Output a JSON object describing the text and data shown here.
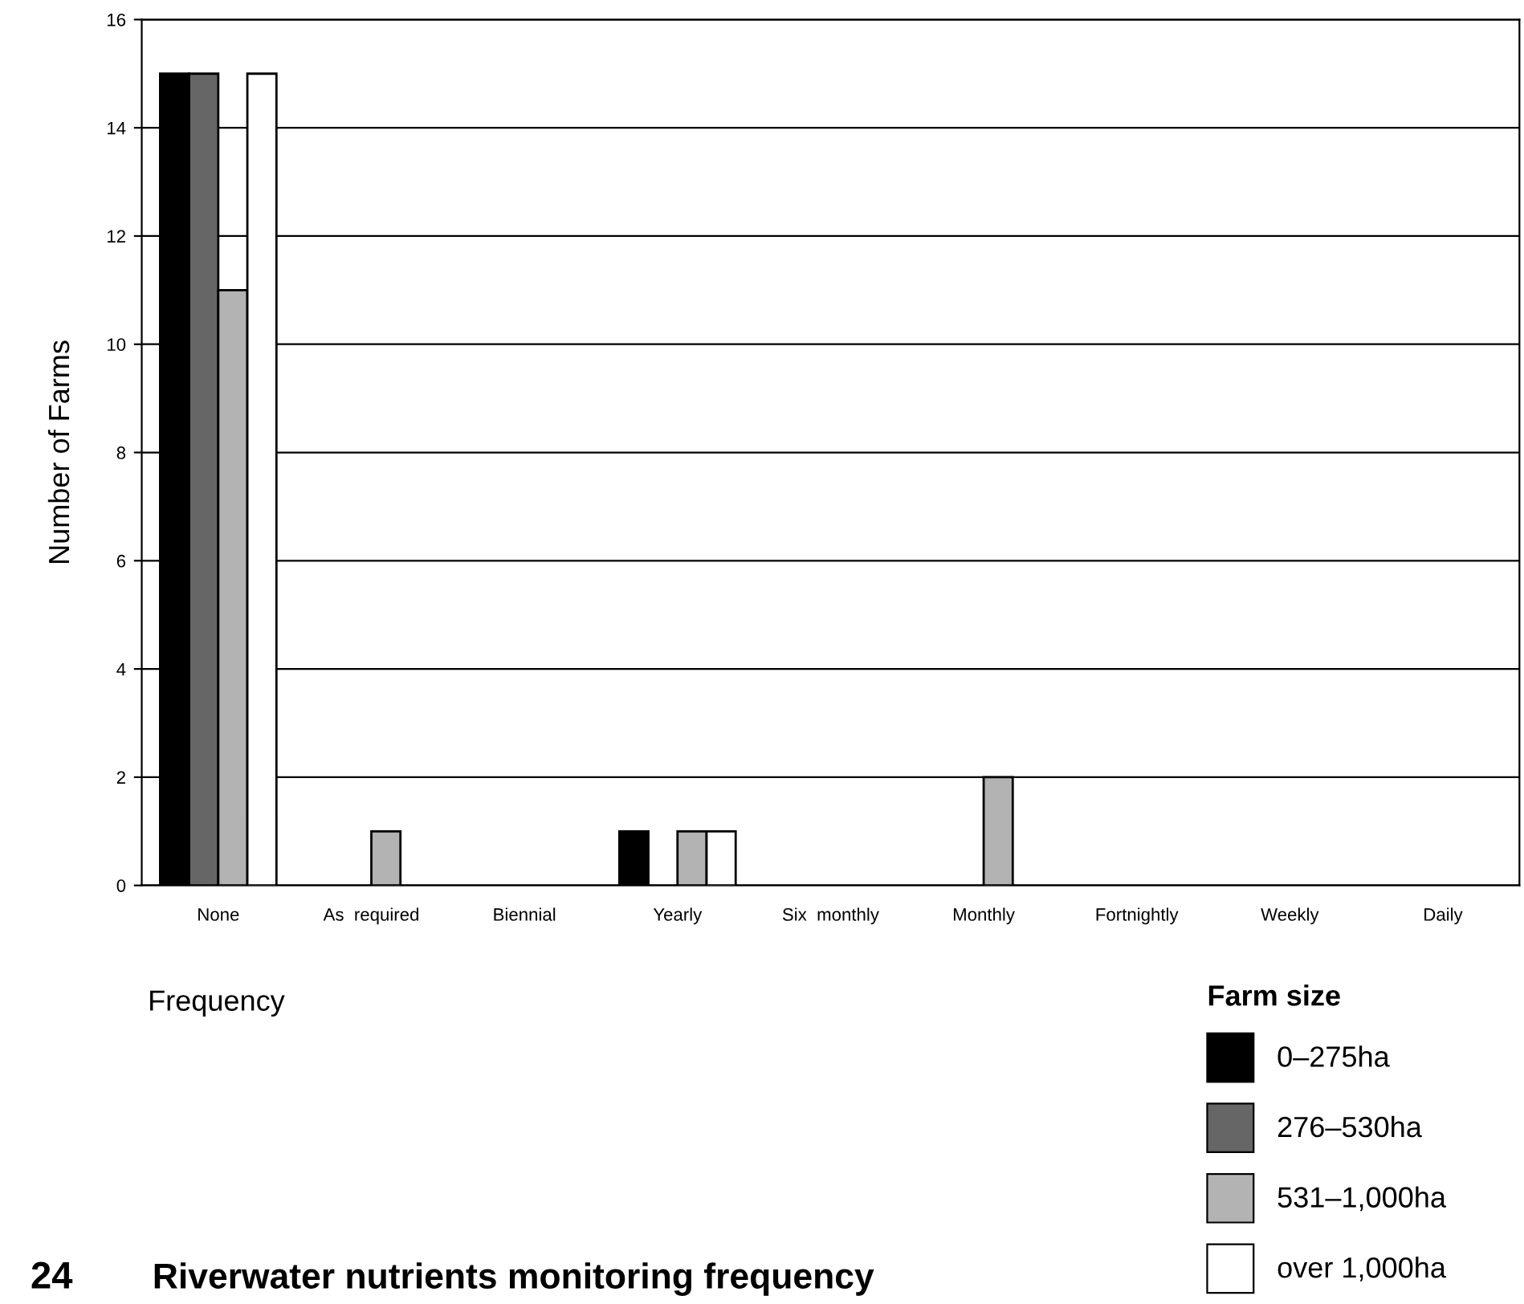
{
  "chart_data": {
    "type": "bar",
    "title": "Riverwater nutrients monitoring frequency",
    "annotations": [
      "24"
    ],
    "xlabel": "Frequency",
    "ylabel": "Number of Farms",
    "legend_title": "Farm size",
    "categories": [
      "None",
      "As  required",
      "Biennial",
      "Yearly",
      "Six  monthly",
      "Monthly",
      "Fortnightly",
      "Weekly",
      "Daily"
    ],
    "series": [
      {
        "name": "0–275ha",
        "color": "#000000",
        "values": [
          15,
          0,
          0,
          1,
          0,
          0,
          0,
          0,
          0
        ]
      },
      {
        "name": "276–530ha",
        "color": "#666666",
        "values": [
          15,
          0,
          0,
          0,
          0,
          0,
          0,
          0,
          0
        ]
      },
      {
        "name": "531–1,000ha",
        "color": "#b3b3b3",
        "values": [
          11,
          1,
          0,
          1,
          0,
          2,
          0,
          0,
          0
        ]
      },
      {
        "name": "over 1,000ha",
        "color": "#ffffff",
        "values": [
          15,
          0,
          0,
          1,
          0,
          0,
          0,
          0,
          0
        ]
      }
    ],
    "ylim": [
      0,
      16
    ],
    "yticks": [
      0,
      2,
      4,
      6,
      8,
      10,
      12,
      14,
      16
    ],
    "grid": "y",
    "legend": "bottom right"
  }
}
